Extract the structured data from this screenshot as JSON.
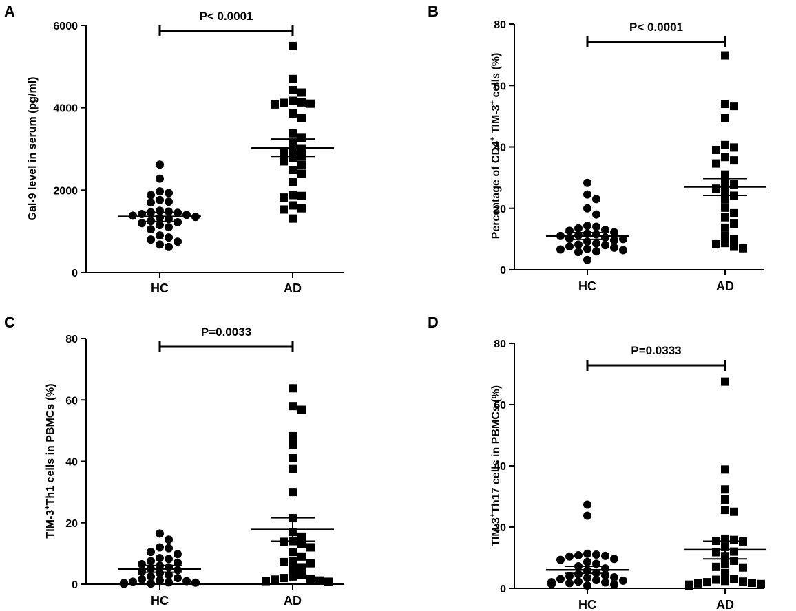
{
  "figure": {
    "background": "#ffffff",
    "ink": "#000000"
  },
  "chart_data": [
    {
      "panel_label": "A",
      "type": "scatter",
      "title": "",
      "xlabel": "",
      "ylabel": "Gal-9 level in serum (pg/ml)",
      "ylabel_parts": {
        "prefix": "",
        "sup": "",
        "mid": "",
        "sup2": "",
        "suffix": "Gal-9 level in serum (pg/ml)"
      },
      "categories": [
        "HC",
        "AD"
      ],
      "ylim": [
        0,
        6000
      ],
      "yticks": [
        0,
        2000,
        4000,
        6000
      ],
      "ytick_labels": [
        "0",
        "2000",
        "4000",
        "6000"
      ],
      "significance": "P< 0.0001",
      "series": [
        {
          "name": "HC",
          "marker": "circle",
          "values": [
            2620,
            2280,
            1970,
            1930,
            1880,
            1760,
            1720,
            1700,
            1500,
            1480,
            1460,
            1450,
            1420,
            1400,
            1380,
            1350,
            1330,
            1300,
            1250,
            1220,
            1200,
            1150,
            1100,
            1050,
            900,
            850,
            800,
            750,
            680,
            620
          ],
          "mean": 1360,
          "sem_low": 1240,
          "sem_high": 1460
        },
        {
          "name": "AD",
          "marker": "square",
          "values": [
            5500,
            4700,
            4430,
            4370,
            4170,
            4130,
            4120,
            4100,
            4080,
            3860,
            3750,
            3380,
            3270,
            3120,
            3000,
            2950,
            2900,
            2830,
            2780,
            2700,
            2620,
            2490,
            2400,
            2200,
            1880,
            1860,
            1820,
            1630,
            1560,
            1530,
            1310
          ],
          "mean": 3020,
          "sem_low": 2820,
          "sem_high": 3240
        }
      ]
    },
    {
      "panel_label": "B",
      "type": "scatter",
      "title": "",
      "xlabel": "",
      "ylabel": "Percentage of CD4+ TIM-3+ cells (%)",
      "ylabel_parts": {
        "prefix": "Percentage of CD4",
        "sup": "+",
        "mid": " TIM-3",
        "sup2": "+",
        "suffix": " cells (%)"
      },
      "categories": [
        "HC",
        "AD"
      ],
      "ylim": [
        0,
        80
      ],
      "yticks": [
        0,
        20,
        40,
        60,
        80
      ],
      "ytick_labels": [
        "0",
        "20",
        "40",
        "60",
        "80"
      ],
      "significance": "P< 0.0001",
      "series": [
        {
          "name": "HC",
          "marker": "circle",
          "values": [
            28.3,
            24.5,
            23.0,
            20.0,
            18.0,
            14.3,
            14.0,
            13.5,
            13.0,
            12.7,
            12.2,
            11.8,
            11.5,
            11.2,
            11.0,
            10.5,
            10.2,
            10.0,
            9.6,
            9.2,
            8.6,
            8.2,
            8.0,
            7.6,
            7.2,
            6.8,
            6.6,
            6.4,
            6.0,
            5.8,
            3.2
          ],
          "mean": 11.0,
          "sem_low": 9.9,
          "sem_high": 12.1
        },
        {
          "name": "AD",
          "marker": "square",
          "values": [
            69.8,
            54.0,
            53.3,
            49.3,
            40.6,
            39.8,
            39.0,
            36.7,
            35.6,
            34.6,
            31.0,
            28.4,
            27.8,
            26.4,
            25.6,
            24.1,
            22.9,
            20.2,
            18.4,
            17.1,
            15.0,
            13.7,
            11.0,
            10.0,
            8.7,
            8.3,
            7.5,
            7.0
          ],
          "mean": 27.0,
          "sem_low": 24.2,
          "sem_high": 29.7
        }
      ]
    },
    {
      "panel_label": "C",
      "type": "scatter",
      "title": "",
      "xlabel": "",
      "ylabel": "TIM-3+Th1 cells in PBMCs (%)",
      "ylabel_parts": {
        "prefix": "TIM-3",
        "sup": "+",
        "mid": "Th1 cells in PBMCs (%)",
        "sup2": "",
        "suffix": ""
      },
      "categories": [
        "HC",
        "AD"
      ],
      "ylim": [
        0,
        80
      ],
      "yticks": [
        0,
        20,
        40,
        60,
        80
      ],
      "ytick_labels": [
        "0",
        "20",
        "40",
        "60",
        "80"
      ],
      "significance": "P=0.0033",
      "series": [
        {
          "name": "HC",
          "marker": "circle",
          "values": [
            16.5,
            14.5,
            12.0,
            11.7,
            10.5,
            9.8,
            8.5,
            8.2,
            7.5,
            7.0,
            6.5,
            6.0,
            5.5,
            5.0,
            4.6,
            4.0,
            3.6,
            3.0,
            2.5,
            2.0,
            1.6,
            1.2,
            1.0,
            0.8,
            0.6,
            0.5,
            0.4,
            0.3,
            0.2,
            0.1
          ],
          "mean": 5.0,
          "sem_low": 3.9,
          "sem_high": 6.1
        },
        {
          "name": "AD",
          "marker": "square",
          "values": [
            63.8,
            58.0,
            56.8,
            48.2,
            45.5,
            41.0,
            37.5,
            30.0,
            21.5,
            17.0,
            15.5,
            14.0,
            13.8,
            13.0,
            12.0,
            10.5,
            9.0,
            7.5,
            7.2,
            6.8,
            5.5,
            5.0,
            3.0,
            2.5,
            2.0,
            1.8,
            1.5,
            1.2,
            1.0,
            0.8
          ],
          "mean": 17.8,
          "sem_low": 14.0,
          "sem_high": 21.6
        }
      ]
    },
    {
      "panel_label": "D",
      "type": "scatter",
      "title": "",
      "xlabel": "",
      "ylabel": "TIM-3+Th17 cells in PBMCs (%)",
      "ylabel_parts": {
        "prefix": "TIM-3",
        "sup": "+",
        "mid": "Th17 cells in PBMCs (%)",
        "sup2": "",
        "suffix": ""
      },
      "categories": [
        "HC",
        "AD"
      ],
      "ylim": [
        0,
        80
      ],
      "yticks": [
        0,
        20,
        40,
        60,
        80
      ],
      "ytick_labels": [
        "0",
        "20",
        "40",
        "60",
        "80"
      ],
      "significance": "P=0.0333",
      "series": [
        {
          "name": "HC",
          "marker": "circle",
          "values": [
            27.3,
            23.7,
            11.3,
            11.0,
            10.8,
            10.6,
            10.4,
            9.6,
            9.3,
            8.6,
            8.0,
            7.2,
            6.5,
            5.8,
            5.0,
            4.6,
            4.2,
            4.0,
            3.6,
            3.4,
            3.0,
            2.7,
            2.5,
            2.2,
            2.0,
            1.9,
            1.7,
            1.4,
            1.2,
            0.9
          ],
          "mean": 6.0,
          "sem_low": 4.9,
          "sem_high": 7.2
        },
        {
          "name": "AD",
          "marker": "square",
          "values": [
            67.5,
            38.8,
            32.3,
            29.0,
            25.6,
            25.0,
            16.2,
            15.8,
            15.5,
            15.3,
            13.5,
            12.0,
            11.8,
            10.5,
            9.0,
            8.0,
            7.0,
            6.8,
            5.0,
            3.0,
            2.8,
            2.4,
            2.2,
            2.0,
            1.8,
            1.6,
            1.4,
            1.2,
            1.0,
            0.8
          ],
          "mean": 12.6,
          "sem_low": 9.6,
          "sem_high": 15.4
        }
      ]
    }
  ]
}
